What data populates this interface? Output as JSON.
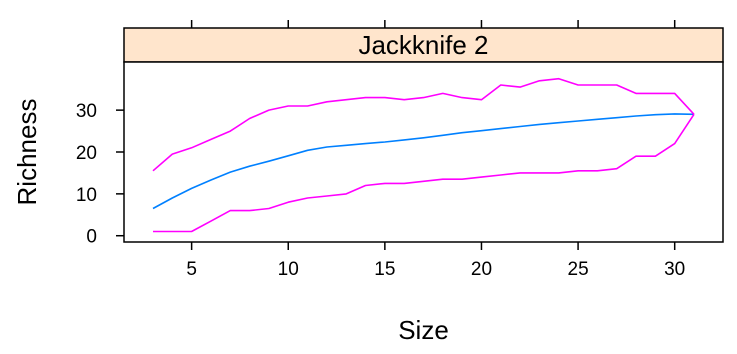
{
  "chart_data": {
    "type": "line",
    "strip_label": "Jackknife 2",
    "xlabel": "Size",
    "ylabel": "Richness",
    "xlim": [
      1.5,
      32.5
    ],
    "ylim": [
      -1.5,
      41.5
    ],
    "x_ticks": [
      5,
      10,
      15,
      20,
      25,
      30
    ],
    "y_ticks": [
      0,
      10,
      20,
      30
    ],
    "grid": false,
    "colors": {
      "strip": "#ffe5cc",
      "mean": "#0080ff",
      "bounds": "#ff00ff"
    },
    "series": [
      {
        "role": "mean",
        "x": [
          3,
          4,
          5,
          6,
          7,
          8,
          9,
          10,
          11,
          12,
          13,
          14,
          15,
          16,
          17,
          18,
          19,
          20,
          21,
          22,
          23,
          24,
          25,
          26,
          27,
          28,
          29,
          30,
          31
        ],
        "values": [
          6.5,
          9,
          11.3,
          13.3,
          15.2,
          16.6,
          17.8,
          19.1,
          20.4,
          21.2,
          21.6,
          22.0,
          22.4,
          22.9,
          23.4,
          24.0,
          24.6,
          25.1,
          25.6,
          26.1,
          26.6,
          27.0,
          27.4,
          27.8,
          28.2,
          28.6,
          28.9,
          29.1,
          29.0
        ]
      },
      {
        "role": "upper",
        "x": [
          3,
          4,
          5,
          6,
          7,
          8,
          9,
          10,
          11,
          12,
          13,
          14,
          15,
          16,
          17,
          18,
          19,
          20,
          21,
          22,
          23,
          24,
          25,
          26,
          27,
          28,
          29,
          30,
          31
        ],
        "values": [
          15.5,
          19.5,
          21.0,
          23.0,
          25.0,
          28.0,
          30.0,
          31.0,
          31.0,
          32.0,
          32.5,
          33.0,
          33.0,
          32.5,
          33.0,
          34.0,
          33.0,
          32.5,
          36.0,
          35.5,
          37.0,
          37.5,
          36.0,
          36.0,
          36.0,
          34.0,
          34.0,
          34.0,
          29.0
        ]
      },
      {
        "role": "lower",
        "x": [
          3,
          4,
          5,
          6,
          7,
          8,
          9,
          10,
          11,
          12,
          13,
          14,
          15,
          16,
          17,
          18,
          19,
          20,
          21,
          22,
          23,
          24,
          25,
          26,
          27,
          28,
          29,
          30,
          31
        ],
        "values": [
          1.0,
          1.0,
          1.0,
          3.5,
          6.0,
          6.0,
          6.5,
          8.0,
          9.0,
          9.5,
          10.0,
          12.0,
          12.5,
          12.5,
          13.0,
          13.5,
          13.5,
          14.0,
          14.5,
          15.0,
          15.0,
          15.0,
          15.5,
          15.5,
          16.0,
          19.0,
          19.0,
          22.0,
          29.0
        ]
      }
    ]
  }
}
